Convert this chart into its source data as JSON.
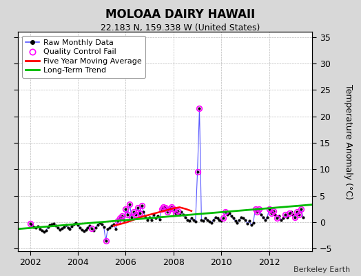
{
  "title": "MOLOAA DAIRY HAWAII",
  "subtitle": "22.183 N, 159.338 W (United States)",
  "ylabel_right": "Temperature Anomaly (°C)",
  "credit": "Berkeley Earth",
  "xlim": [
    2001.5,
    2013.8
  ],
  "ylim": [
    -5.5,
    36
  ],
  "yticks": [
    -5,
    0,
    5,
    10,
    15,
    20,
    25,
    30,
    35
  ],
  "xticks": [
    2002,
    2004,
    2006,
    2008,
    2010,
    2012
  ],
  "bg_color": "#d8d8d8",
  "plot_bg_color": "#ffffff",
  "raw_line_color": "#5555ff",
  "raw_dot_color": "#000000",
  "qc_fail_color": "#ff00ff",
  "moving_avg_color": "#ff0000",
  "trend_color": "#00bb00",
  "raw_data": [
    [
      2002.0,
      -0.3
    ],
    [
      2002.083,
      -0.6
    ],
    [
      2002.167,
      -0.9
    ],
    [
      2002.25,
      -1.1
    ],
    [
      2002.333,
      -0.8
    ],
    [
      2002.417,
      -1.3
    ],
    [
      2002.5,
      -1.6
    ],
    [
      2002.583,
      -1.9
    ],
    [
      2002.667,
      -1.6
    ],
    [
      2002.75,
      -0.9
    ],
    [
      2002.833,
      -0.6
    ],
    [
      2002.917,
      -0.4
    ],
    [
      2003.0,
      -0.3
    ],
    [
      2003.083,
      -0.7
    ],
    [
      2003.167,
      -1.1
    ],
    [
      2003.25,
      -1.4
    ],
    [
      2003.333,
      -1.2
    ],
    [
      2003.417,
      -0.9
    ],
    [
      2003.5,
      -0.6
    ],
    [
      2003.583,
      -1.1
    ],
    [
      2003.667,
      -1.3
    ],
    [
      2003.75,
      -0.8
    ],
    [
      2003.833,
      -0.4
    ],
    [
      2003.917,
      -0.1
    ],
    [
      2004.0,
      -0.5
    ],
    [
      2004.083,
      -1.0
    ],
    [
      2004.167,
      -1.5
    ],
    [
      2004.25,
      -1.7
    ],
    [
      2004.333,
      -1.4
    ],
    [
      2004.417,
      -1.0
    ],
    [
      2004.5,
      -0.7
    ],
    [
      2004.583,
      -1.2
    ],
    [
      2004.667,
      -1.6
    ],
    [
      2004.75,
      -1.0
    ],
    [
      2004.833,
      -0.5
    ],
    [
      2004.917,
      -0.2
    ],
    [
      2005.0,
      -0.4
    ],
    [
      2005.083,
      -0.9
    ],
    [
      2005.167,
      -3.5
    ],
    [
      2005.25,
      -1.3
    ],
    [
      2005.333,
      -1.0
    ],
    [
      2005.417,
      -0.7
    ],
    [
      2005.5,
      -0.4
    ],
    [
      2005.583,
      -1.3
    ],
    [
      2005.667,
      0.2
    ],
    [
      2005.75,
      0.7
    ],
    [
      2005.833,
      1.1
    ],
    [
      2005.917,
      0.4
    ],
    [
      2006.0,
      2.4
    ],
    [
      2006.083,
      1.4
    ],
    [
      2006.167,
      3.4
    ],
    [
      2006.25,
      0.9
    ],
    [
      2006.333,
      1.9
    ],
    [
      2006.417,
      1.4
    ],
    [
      2006.5,
      2.7
    ],
    [
      2006.583,
      1.7
    ],
    [
      2006.667,
      3.1
    ],
    [
      2006.75,
      1.9
    ],
    [
      2006.833,
      0.9
    ],
    [
      2006.917,
      0.4
    ],
    [
      2007.0,
      0.9
    ],
    [
      2007.083,
      0.4
    ],
    [
      2007.167,
      1.4
    ],
    [
      2007.25,
      0.7
    ],
    [
      2007.333,
      1.1
    ],
    [
      2007.417,
      0.5
    ],
    [
      2007.5,
      2.4
    ],
    [
      2007.583,
      2.9
    ],
    [
      2007.667,
      2.7
    ],
    [
      2007.75,
      1.9
    ],
    [
      2007.833,
      2.4
    ],
    [
      2007.917,
      2.9
    ],
    [
      2008.0,
      2.4
    ],
    [
      2008.083,
      1.7
    ],
    [
      2008.167,
      2.1
    ],
    [
      2008.25,
      1.4
    ],
    [
      2008.333,
      1.9
    ],
    [
      2008.417,
      1.4
    ],
    [
      2008.5,
      0.9
    ],
    [
      2008.583,
      0.4
    ],
    [
      2008.667,
      0.2
    ],
    [
      2008.75,
      0.7
    ],
    [
      2008.833,
      0.4
    ],
    [
      2008.917,
      0.1
    ],
    [
      2009.0,
      9.5
    ],
    [
      2009.083,
      21.5
    ],
    [
      2009.167,
      0.4
    ],
    [
      2009.25,
      0.2
    ],
    [
      2009.333,
      0.7
    ],
    [
      2009.417,
      0.4
    ],
    [
      2009.5,
      0.1
    ],
    [
      2009.583,
      -0.1
    ],
    [
      2009.667,
      0.4
    ],
    [
      2009.75,
      0.9
    ],
    [
      2009.833,
      0.7
    ],
    [
      2009.917,
      0.4
    ],
    [
      2010.0,
      0.2
    ],
    [
      2010.083,
      0.7
    ],
    [
      2010.167,
      1.9
    ],
    [
      2010.25,
      1.4
    ],
    [
      2010.333,
      1.7
    ],
    [
      2010.417,
      1.1
    ],
    [
      2010.5,
      0.7
    ],
    [
      2010.583,
      0.2
    ],
    [
      2010.667,
      -0.1
    ],
    [
      2010.75,
      0.4
    ],
    [
      2010.833,
      0.9
    ],
    [
      2010.917,
      0.7
    ],
    [
      2011.0,
      0.4
    ],
    [
      2011.083,
      -0.3
    ],
    [
      2011.167,
      0.2
    ],
    [
      2011.25,
      -0.6
    ],
    [
      2011.333,
      -0.1
    ],
    [
      2011.417,
      2.4
    ],
    [
      2011.5,
      1.9
    ],
    [
      2011.583,
      2.4
    ],
    [
      2011.667,
      1.4
    ],
    [
      2011.75,
      0.9
    ],
    [
      2011.833,
      0.4
    ],
    [
      2011.917,
      0.9
    ],
    [
      2012.0,
      2.4
    ],
    [
      2012.083,
      1.7
    ],
    [
      2012.167,
      2.1
    ],
    [
      2012.25,
      1.4
    ],
    [
      2012.333,
      0.7
    ],
    [
      2012.417,
      1.1
    ],
    [
      2012.5,
      0.4
    ],
    [
      2012.583,
      0.7
    ],
    [
      2012.667,
      1.4
    ],
    [
      2012.75,
      0.9
    ],
    [
      2012.833,
      1.7
    ],
    [
      2012.917,
      1.9
    ],
    [
      2013.0,
      1.4
    ],
    [
      2013.083,
      0.9
    ],
    [
      2013.167,
      1.9
    ],
    [
      2013.25,
      1.4
    ],
    [
      2013.333,
      2.4
    ],
    [
      2013.417,
      0.9
    ]
  ],
  "qc_fail_points": [
    [
      2002.0,
      -0.3
    ],
    [
      2004.583,
      -1.2
    ],
    [
      2005.167,
      -3.5
    ],
    [
      2005.667,
      0.2
    ],
    [
      2005.75,
      0.7
    ],
    [
      2005.833,
      1.1
    ],
    [
      2006.0,
      2.4
    ],
    [
      2006.083,
      1.4
    ],
    [
      2006.167,
      3.4
    ],
    [
      2006.25,
      0.9
    ],
    [
      2006.333,
      1.9
    ],
    [
      2006.417,
      1.4
    ],
    [
      2006.5,
      2.7
    ],
    [
      2006.583,
      1.7
    ],
    [
      2006.667,
      3.1
    ],
    [
      2007.5,
      2.4
    ],
    [
      2007.583,
      2.9
    ],
    [
      2007.667,
      2.7
    ],
    [
      2007.75,
      1.9
    ],
    [
      2007.833,
      2.4
    ],
    [
      2007.917,
      2.9
    ],
    [
      2008.0,
      2.4
    ],
    [
      2008.083,
      1.7
    ],
    [
      2008.167,
      2.1
    ],
    [
      2009.0,
      9.5
    ],
    [
      2009.083,
      21.5
    ],
    [
      2010.083,
      0.7
    ],
    [
      2010.167,
      1.9
    ],
    [
      2011.417,
      2.4
    ],
    [
      2011.5,
      1.9
    ],
    [
      2011.583,
      2.4
    ],
    [
      2012.0,
      2.4
    ],
    [
      2012.083,
      1.7
    ],
    [
      2012.167,
      2.1
    ],
    [
      2012.333,
      0.7
    ],
    [
      2012.667,
      1.4
    ],
    [
      2012.833,
      1.7
    ],
    [
      2013.083,
      0.9
    ],
    [
      2013.167,
      1.9
    ],
    [
      2013.25,
      1.4
    ],
    [
      2013.333,
      2.4
    ]
  ],
  "moving_avg": [
    [
      2005.5,
      -0.7
    ],
    [
      2005.75,
      -0.4
    ],
    [
      2006.0,
      -0.1
    ],
    [
      2006.25,
      0.3
    ],
    [
      2006.5,
      0.7
    ],
    [
      2006.75,
      1.1
    ],
    [
      2007.0,
      1.4
    ],
    [
      2007.25,
      1.7
    ],
    [
      2007.5,
      2.0
    ],
    [
      2007.75,
      2.3
    ],
    [
      2008.0,
      2.6
    ],
    [
      2008.25,
      2.8
    ],
    [
      2008.5,
      2.5
    ],
    [
      2008.75,
      2.1
    ]
  ],
  "trend_line": [
    [
      2001.5,
      -1.3
    ],
    [
      2013.8,
      3.3
    ]
  ]
}
